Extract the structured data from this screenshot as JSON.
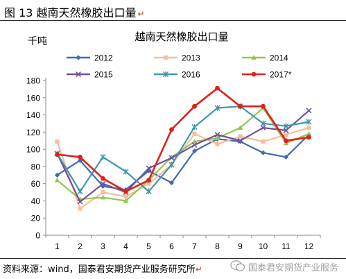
{
  "figure": {
    "caption": "图 13 越南天然橡胶出口量",
    "caption_mark": "↵"
  },
  "source": {
    "text": "资料来源：wind，国泰君安期货产业服务研究所",
    "mark": "↵",
    "watermark": "国泰君安期货产业服务"
  },
  "colors": {
    "2012": "#3c6cb0",
    "2013": "#f2bf98",
    "2014": "#96c453",
    "2015": "#73509a",
    "2016": "#3f96ad",
    "2017*": "#e1201c",
    "axis": "#888888",
    "text": "#000000"
  },
  "chart_data": {
    "type": "line",
    "title": "越南天然橡胶出口量",
    "ylabel": "千吨",
    "xlabel": "",
    "categories": [
      "1",
      "2",
      "3",
      "4",
      "5",
      "6",
      "7",
      "8",
      "9",
      "10",
      "11",
      "12"
    ],
    "y_ticks": [
      "0",
      "20",
      "40",
      "60",
      "80",
      "100",
      "120",
      "140",
      "160",
      "180"
    ],
    "ylim": [
      0,
      180
    ],
    "grid": false,
    "legend_position": "top",
    "series": [
      {
        "name": "2012",
        "values": [
          70,
          87,
          57,
          53,
          75,
          61,
          98,
          112,
          109,
          96,
          91,
          117
        ],
        "marker": "diamond"
      },
      {
        "name": "2013",
        "values": [
          109,
          31,
          50,
          45,
          60,
          82,
          118,
          106,
          115,
          109,
          117,
          125
        ],
        "marker": "square"
      },
      {
        "name": "2014",
        "values": [
          64,
          42,
          44,
          40,
          64,
          91,
          109,
          113,
          125,
          148,
          107,
          118
        ],
        "marker": "triangle"
      },
      {
        "name": "2015",
        "values": [
          95,
          39,
          60,
          50,
          78,
          90,
          105,
          117,
          110,
          125,
          122,
          145
        ],
        "marker": "x"
      },
      {
        "name": "2016",
        "values": [
          95,
          51,
          91,
          74,
          51,
          82,
          126,
          148,
          150,
          130,
          127,
          132
        ],
        "marker": "star"
      },
      {
        "name": "2017*",
        "values": [
          94,
          91,
          66,
          51,
          64,
          123,
          150,
          171,
          150,
          150,
          110,
          114
        ],
        "marker": "circle"
      }
    ]
  }
}
